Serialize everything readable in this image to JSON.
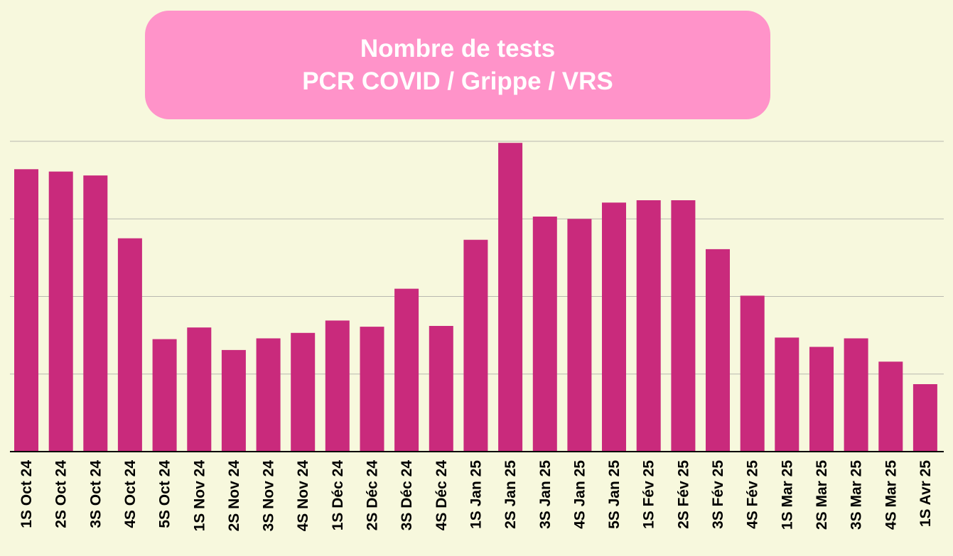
{
  "colors": {
    "background": "#f7f8dd",
    "title_box": "#ff93c9",
    "title_text": "#ffffff",
    "bar": "#c92a7c",
    "gridline": "#b8b8b0",
    "axis": "#000000"
  },
  "chart_data": {
    "type": "bar",
    "title": "Nombre de tests",
    "subtitle": "PCR COVID / Grippe / VRS",
    "xlabel": "",
    "ylabel": "",
    "categories": [
      "1S Oct 24",
      "2S Oct 24",
      "3S Oct 24",
      "4S Oct 24",
      "5S Oct 24",
      "1S Nov 24",
      "2S Nov 24",
      "3S Nov 24",
      "4S Nov 24",
      "1S Déc 24",
      "2S Déc 24",
      "3S Déc 24",
      "4S Déc 24",
      "1S Jan 25",
      "2S Jan 25",
      "3S Jan 25",
      "4S Jan 25",
      "5S Jan 25",
      "1S Fév 25",
      "2S Fév 25",
      "3S Fév 25",
      "4S Fév 25",
      "1S Mar 25",
      "2S Mar 25",
      "3S Mar 25",
      "4S Mar 25",
      "1S Avr 25"
    ],
    "values": [
      3.64,
      3.61,
      3.56,
      2.75,
      1.45,
      1.6,
      1.31,
      1.46,
      1.53,
      1.69,
      1.61,
      2.1,
      1.62,
      2.73,
      3.98,
      3.03,
      3.0,
      3.21,
      3.24,
      3.24,
      2.61,
      2.01,
      1.47,
      1.35,
      1.46,
      1.16,
      0.87
    ],
    "ylim": [
      0,
      4
    ],
    "y_gridlines": [
      1,
      2,
      3,
      4
    ],
    "grid": true,
    "y_tick_labels_shown": false,
    "legend": "none"
  }
}
